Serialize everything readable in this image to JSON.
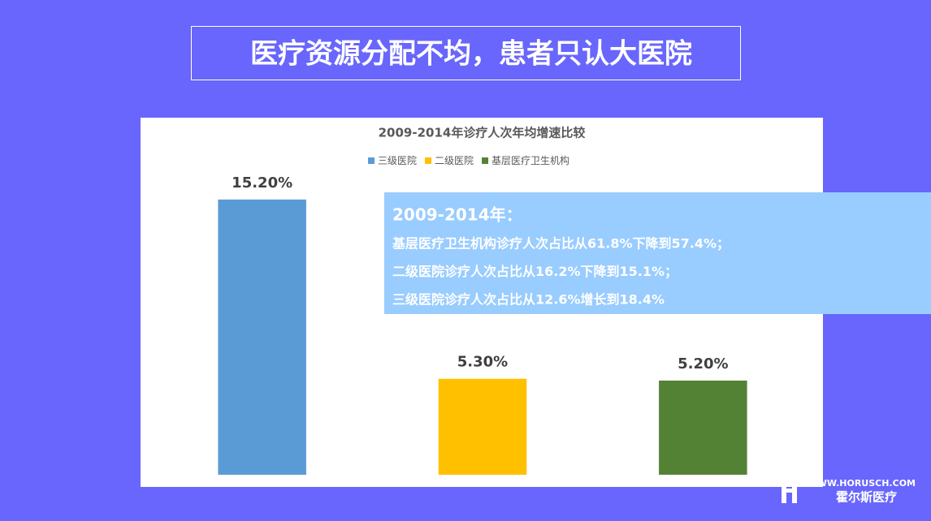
{
  "header": {
    "title": "医疗资源分配不均，患者只认大医院"
  },
  "chart_data": {
    "type": "bar",
    "title": "2009-2014年诊疗人次年均增速比较",
    "series": [
      {
        "name": "三级医院",
        "color": "#5b9bd5",
        "values": [
          15.2
        ],
        "value_labels": [
          "15.20%"
        ]
      },
      {
        "name": "二级医院",
        "color": "#ffc000",
        "values": [
          5.3
        ],
        "value_labels": [
          "5.30%"
        ]
      },
      {
        "name": "基层医疗卫生机构",
        "color": "#548235",
        "values": [
          5.2
        ],
        "value_labels": [
          "5.20%"
        ]
      }
    ],
    "ylim": [
      0,
      16
    ]
  },
  "annotation": {
    "title": "2009-2014年：",
    "lines": [
      "基层医疗卫生机构诊疗人次占比从61.8%下降到57.4%；",
      "二级医院诊疗人次占比从16.2%下降到15.1%；",
      "三级医院诊疗人次占比从12.6%增长到18.4%"
    ]
  },
  "footer": {
    "url": "WWW.HORUSCH.COM",
    "brand": "霍尔斯医疗"
  }
}
